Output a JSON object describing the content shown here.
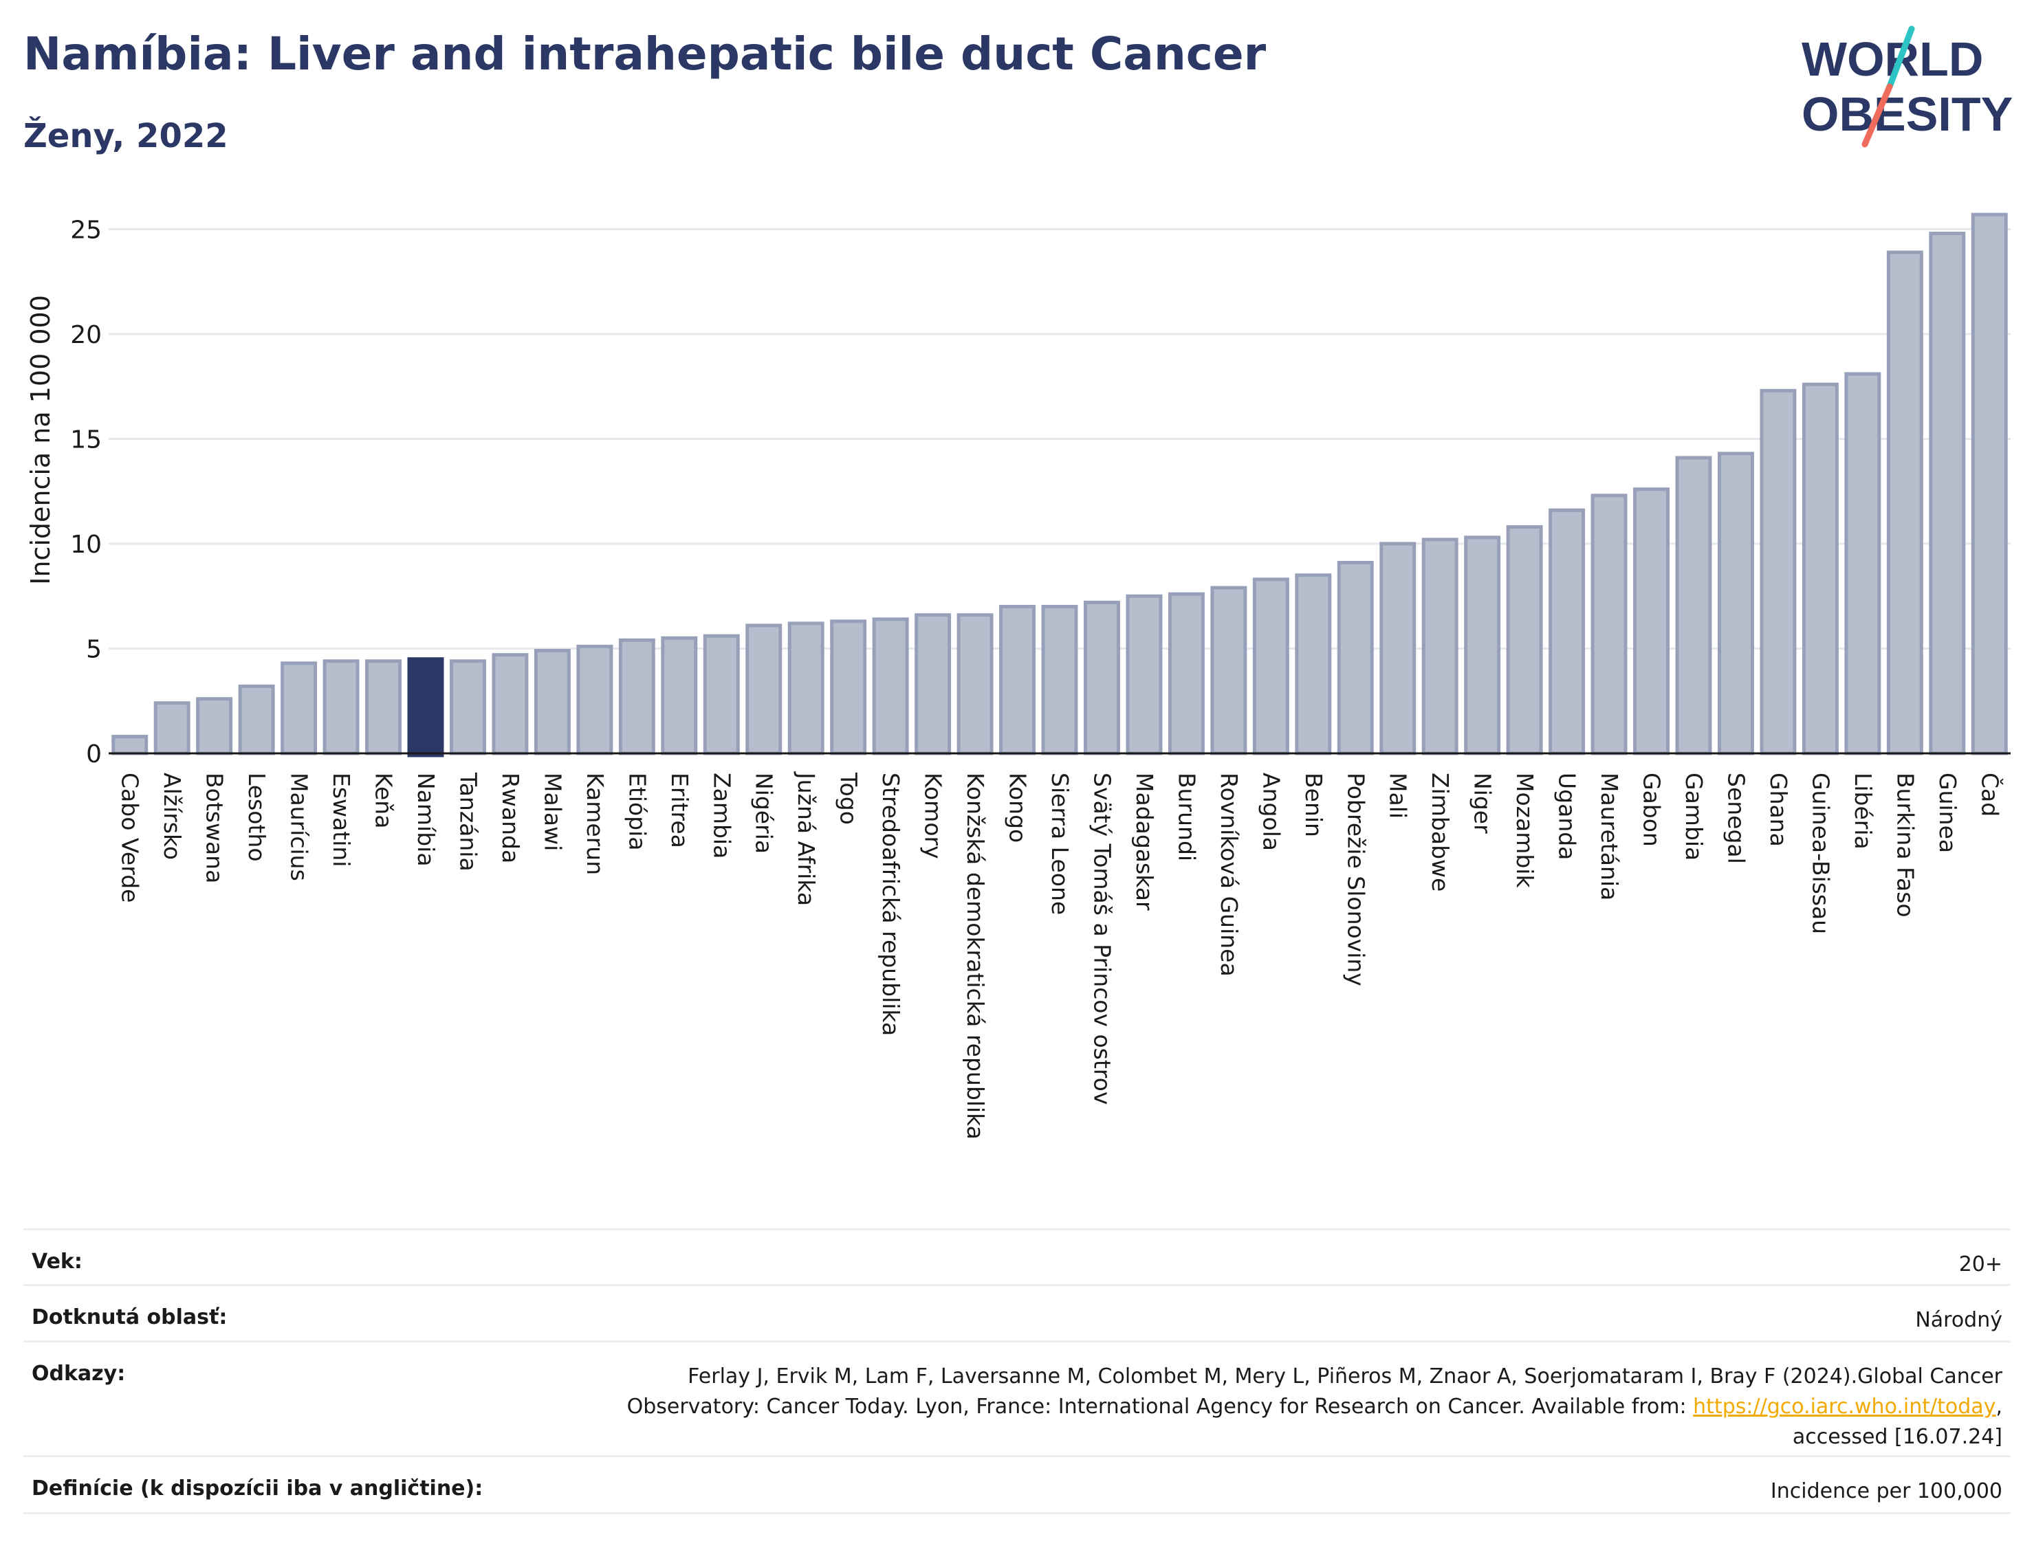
{
  "header": {
    "title": "Namíbia: Liver and intrahepatic bile duct Cancer",
    "subtitle": "Ženy, 2022",
    "logo_line1": "WORLD",
    "logo_line2": "OBESITY"
  },
  "colors": {
    "title": "#2b3866",
    "bar": "#b7bdcd",
    "bar_border": "#97a0b8",
    "highlight": "#2b3866",
    "grid": "#e6e8ee",
    "link": "#f2a900",
    "logo_teal": "#2ec4c4",
    "logo_coral": "#ef6b5b"
  },
  "chart_data": {
    "type": "bar",
    "ylabel": "Incidencia na 100 000",
    "ylim": [
      0,
      27
    ],
    "yticks": [
      0,
      5,
      10,
      15,
      20,
      25
    ],
    "highlight": "Namíbia",
    "grid": true,
    "categories": [
      "Cabo Verde",
      "Alžírsko",
      "Botswana",
      "Lesotho",
      "Maurícius",
      "Eswatini",
      "Keňa",
      "Namíbia",
      "Tanzánia",
      "Rwanda",
      "Malawi",
      "Kamerun",
      "Etiópia",
      "Eritrea",
      "Zambia",
      "Nigéria",
      "Južná Afrika",
      "Togo",
      "Stredoafrická republika",
      "Komory",
      "Konžská demokratická republika",
      "Kongo",
      "Sierra Leone",
      "Svätý Tomáš a Princov ostrov",
      "Madagaskar",
      "Burundi",
      "Rovníková Guinea",
      "Angola",
      "Benin",
      "Pobrežie Slonoviny",
      "Mali",
      "Zimbabwe",
      "Niger",
      "Mozambik",
      "Uganda",
      "Mauretánia",
      "Gabon",
      "Gambia",
      "Senegal",
      "Ghana",
      "Guinea-Bissau",
      "Libéria",
      "Burkina Faso",
      "Guinea",
      "Čad"
    ],
    "values": [
      0.8,
      2.4,
      2.6,
      3.2,
      4.3,
      4.4,
      4.4,
      4.5,
      4.4,
      4.7,
      4.9,
      5.1,
      5.4,
      5.5,
      5.6,
      6.1,
      6.2,
      6.3,
      6.4,
      6.6,
      6.6,
      7.0,
      7.0,
      7.2,
      7.5,
      7.6,
      7.9,
      8.3,
      8.5,
      9.1,
      10.0,
      10.2,
      10.3,
      10.8,
      11.6,
      12.3,
      12.6,
      14.1,
      14.3,
      17.3,
      17.6,
      18.1,
      23.9,
      24.8,
      25.7
    ]
  },
  "footer": {
    "age_label": "Vek:",
    "age_value": "20+",
    "area_label": "Dotknutá oblasť:",
    "area_value": "Národný",
    "refs_label": "Odkazy:",
    "refs_line1": "Ferlay J, Ervik M, Lam F, Laversanne M, Colombet M, Mery L, Piñeros M, Znaor A, Soerjomataram I, Bray F (2024).Global Cancer",
    "refs_line2_pre": "Observatory: Cancer Today. Lyon, France: International Agency for Research on Cancer. Available from: ",
    "refs_link": "https://gco.iarc.who.int/today",
    "refs_line2_post": ",",
    "refs_line3": "accessed [16.07.24]",
    "defs_label": "Definície (k dispozícii iba v angličtine):",
    "defs_value": "Incidence per 100,000"
  }
}
